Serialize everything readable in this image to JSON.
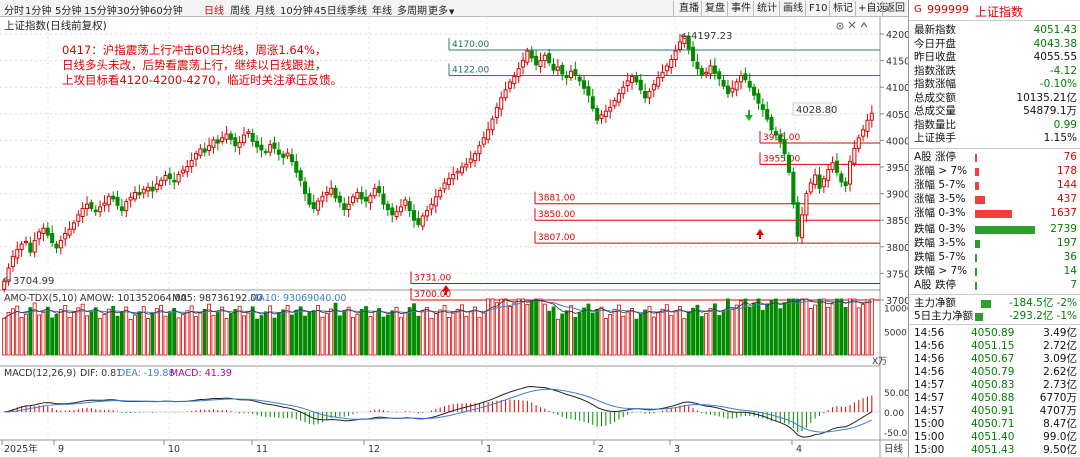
{
  "toolbar": {
    "periods": [
      "分时",
      "1分钟",
      "5分钟",
      "15分钟",
      "30分钟",
      "60分钟",
      "日线",
      "周线",
      "月线",
      "10分钟",
      "45日线",
      "季线",
      "年线",
      "多周期",
      "更多"
    ],
    "active_period": "日线",
    "more_arrow": "▼",
    "right_buttons": [
      "直播",
      "复盘",
      "事件",
      "统计",
      "画线",
      "F10",
      "标记",
      "+自选",
      "返回"
    ]
  },
  "chart_header": {
    "title": "上证指数(日线前复权)",
    "icons": [
      "settings-icon",
      "close-icon",
      "collapse-icon"
    ]
  },
  "annotation": {
    "lines": [
      "0417：沪指震荡上行冲击60日均线，周涨1.64%，",
      "日线多头未改，后势看震荡上行，继续以日线跟进，",
      "上攻目标看4120-4200-4270，临近时关注承压反馈。"
    ]
  },
  "price_axis": {
    "ticks": [
      "4200",
      "4150",
      "4100",
      "4050",
      "4000",
      "3950",
      "3900",
      "3850",
      "3800",
      "3750",
      "3700"
    ]
  },
  "price_labels": {
    "high": "4197.23",
    "low": "3704.99",
    "last_box": "4028.80"
  },
  "levels": [
    {
      "label": "4170.00",
      "value": 4170
    },
    {
      "label": "4122.00",
      "value": 4122
    },
    {
      "label": "3995.00",
      "value": 3995
    },
    {
      "label": "3955.00",
      "value": 3955
    },
    {
      "label": "3881.00",
      "value": 3881
    },
    {
      "label": "3850.00",
      "value": 3850
    },
    {
      "label": "3807.00",
      "value": 3807
    },
    {
      "label": "3731.00",
      "value": 3731
    },
    {
      "label": "3700.00",
      "value": 3700
    }
  ],
  "volume": {
    "header_name": "AMO-TDX(5,10)",
    "header_amow": "AMOW: 101352064.00",
    "header_ma5": "MA5: 98736192.00",
    "header_ma10": "MA10: 93069040.00",
    "ticks": [
      "10000",
      "5000"
    ],
    "unit": "X万"
  },
  "macd": {
    "header_name": "MACD(12,26,9)",
    "header_dif": "DIF: 0.81",
    "header_dea": "DEA: -19.88",
    "header_macd": "MACD: 41.39",
    "ticks": [
      "50.00",
      "0.00",
      "-50.00"
    ]
  },
  "date_axis": {
    "labels": [
      "2025年",
      "9",
      "10",
      "11",
      "12",
      "1",
      "2",
      "3",
      "4"
    ],
    "right_label": "日线"
  },
  "right_panel": {
    "flag": "G",
    "code": "999999",
    "name": "上证指数",
    "stats": [
      {
        "label": "最新指数",
        "value": "4051.43",
        "color": "grn"
      },
      {
        "label": "今日开盘",
        "value": "4043.38",
        "color": "grn"
      },
      {
        "label": "昨日收盘",
        "value": "4055.55",
        "color": "blk"
      },
      {
        "label": "指数涨跌",
        "value": "-4.12",
        "color": "grn"
      },
      {
        "label": "指数涨幅",
        "value": "-0.10%",
        "color": "grn"
      },
      {
        "label": "总成交额",
        "value": "10135.21亿",
        "color": "blk"
      },
      {
        "label": "总成交量",
        "value": "54879.1万",
        "color": "blk"
      },
      {
        "label": "指数量比",
        "value": "0.99",
        "color": "grn"
      },
      {
        "label": "上证换手",
        "value": "1.15%",
        "color": "blk"
      }
    ],
    "breadth": [
      {
        "label": "A股 涨停",
        "value": "76",
        "color": "red",
        "ratio": 0.04
      },
      {
        "label": "涨幅 > 7%",
        "value": "178",
        "color": "red",
        "ratio": 0.07
      },
      {
        "label": "涨幅 5-7%",
        "value": "144",
        "color": "red",
        "ratio": 0.06
      },
      {
        "label": "涨幅 3-5%",
        "value": "437",
        "color": "red",
        "ratio": 0.17
      },
      {
        "label": "涨幅 0-3%",
        "value": "1637",
        "color": "red",
        "ratio": 0.61
      },
      {
        "label": "跌幅 0-3%",
        "value": "2739",
        "color": "grn",
        "ratio": 1.0
      },
      {
        "label": "跌幅 3-5%",
        "value": "197",
        "color": "grn",
        "ratio": 0.08
      },
      {
        "label": "跌幅 5-7%",
        "value": "36",
        "color": "grn",
        "ratio": 0.02
      },
      {
        "label": "跌幅 > 7%",
        "value": "14",
        "color": "grn",
        "ratio": 0.01
      },
      {
        "label": "A股 跌停",
        "value": "7",
        "color": "grn",
        "ratio": 0.01
      }
    ],
    "flows": [
      {
        "label": "主力净额",
        "value": "-184.5亿",
        "pct": "-2%",
        "color": "grn"
      },
      {
        "label": "5日主力净额",
        "value": "-293.2亿",
        "pct": "-1%",
        "color": "grn"
      }
    ],
    "ticks": [
      {
        "time": "14:56",
        "price": "4050.89",
        "vol": "3.49亿"
      },
      {
        "time": "14:56",
        "price": "4051.15",
        "vol": "2.72亿"
      },
      {
        "time": "14:56",
        "price": "4050.67",
        "vol": "3.09亿"
      },
      {
        "time": "14:56",
        "price": "4050.79",
        "vol": "2.62亿"
      },
      {
        "time": "14:57",
        "price": "4050.83",
        "vol": "2.73亿"
      },
      {
        "time": "14:57",
        "price": "4050.88",
        "vol": "6770万"
      },
      {
        "time": "14:57",
        "price": "4050.91",
        "vol": "4707万"
      },
      {
        "time": "15:00",
        "price": "4050.71",
        "vol": "8.47亿"
      },
      {
        "time": "15:00",
        "price": "4051.40",
        "vol": "99.0亿"
      },
      {
        "time": "15:00",
        "price": "4051.43",
        "vol": "9.50亿"
      }
    ]
  },
  "colors": {
    "up": "#e00000",
    "down": "#008a00",
    "ma10": "#3a7fd5",
    "accent": "#e00000"
  }
}
